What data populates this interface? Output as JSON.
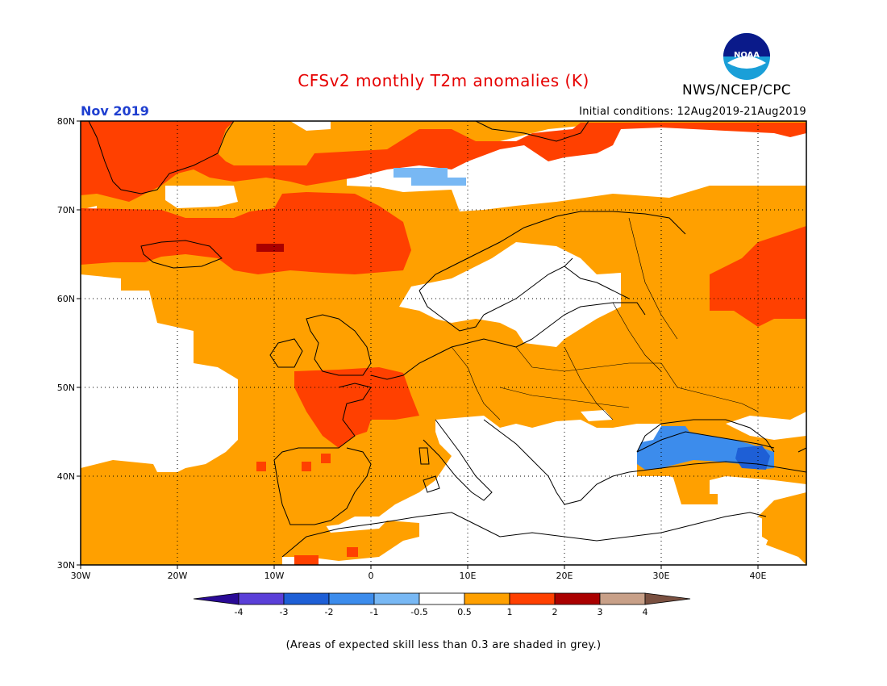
{
  "header": {
    "title": "CFSv2 monthly T2m anomalies (K)",
    "agency": "NWS/NCEP/CPC",
    "logo_text": "NOAA",
    "month": "Nov 2019",
    "initial_conditions": "Initial conditions: 12Aug2019-21Aug2019"
  },
  "map": {
    "lon_range": [
      -30,
      45
    ],
    "lat_range": [
      30,
      80
    ],
    "lat_ticks": [
      {
        "value": 80,
        "label": "80N"
      },
      {
        "value": 70,
        "label": "70N"
      },
      {
        "value": 60,
        "label": "60N"
      },
      {
        "value": 50,
        "label": "50N"
      },
      {
        "value": 40,
        "label": "40N"
      },
      {
        "value": 30,
        "label": "30N"
      }
    ],
    "lon_ticks": [
      {
        "value": -30,
        "label": "30W"
      },
      {
        "value": -20,
        "label": "20W"
      },
      {
        "value": -10,
        "label": "10W"
      },
      {
        "value": 0,
        "label": "0"
      },
      {
        "value": 10,
        "label": "10E"
      },
      {
        "value": 20,
        "label": "20E"
      },
      {
        "value": 30,
        "label": "30E"
      },
      {
        "value": 40,
        "label": "40E"
      }
    ]
  },
  "legend": {
    "colors": [
      "#2a0a96",
      "#5a3fd8",
      "#1e5fd6",
      "#3c8cec",
      "#78b8f4",
      "#ffffff",
      "#ffa000",
      "#ff4000",
      "#aa0000",
      "#c8a088",
      "#7a5040"
    ],
    "labels": [
      "-4",
      "-3",
      "-2",
      "-1",
      "-0.5",
      "0.5",
      "1",
      "2",
      "3",
      "4"
    ]
  },
  "footnote": "(Areas of expected skill less than 0.3 are shaded in grey.)"
}
